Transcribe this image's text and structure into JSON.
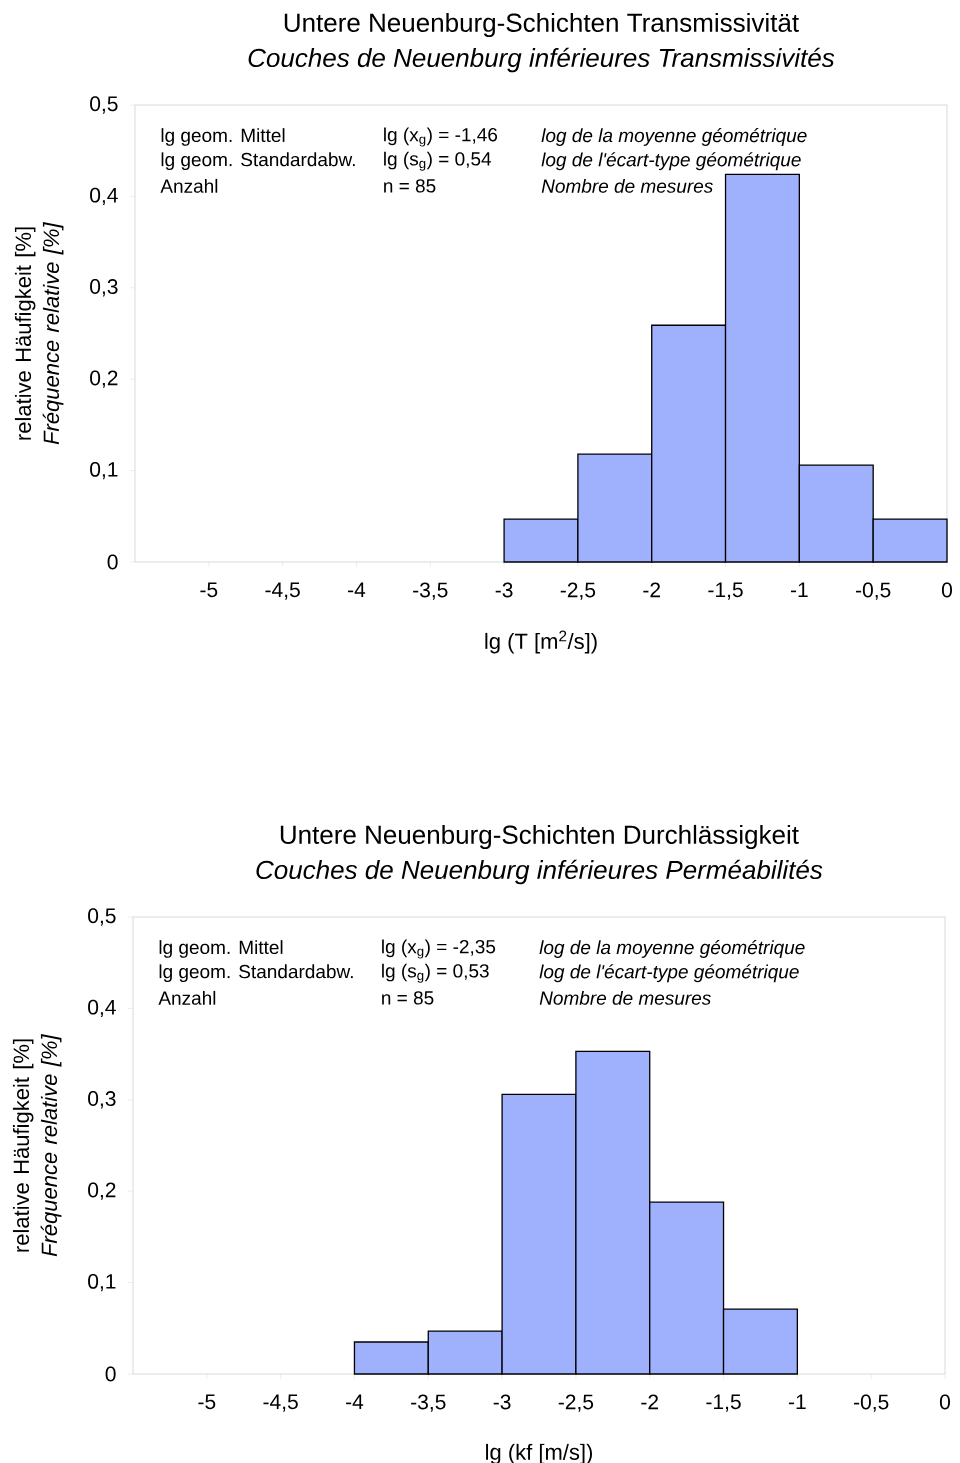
{
  "chart_data": [
    {
      "type": "histogram",
      "title": "Untere Neuenburg-Schichten Transmissivität",
      "subtitle": "Couches de Neuenburg inférieures Transmissivités",
      "xlabel": "lg (T [m$^{2}$/s])",
      "ylabel": "relative Häufigkeit [%] *Fréquence relative [%]*",
      "annotations": [
        "lg geom. Mittel",
        "lg (x$_{g}$) = -1,46",
        "log de la moyenne géométrique",
        "lg geom. Standardabw.",
        "lg (s$_{g}$) =   0,54",
        "log de l'écart-type géométrique",
        "Anzahl",
        "n         =   85",
        "Nombre de mesures"
      ],
      "bins": [
        -3,
        -2.5,
        -2,
        -1.5,
        -1,
        -0.5,
        0
      ],
      "values": [
        0.047,
        0.118,
        0.259,
        0.424,
        0.106,
        0.047
      ],
      "color": "#9fb0fc",
      "xlim": [
        -5.5,
        0
      ],
      "ylim": [
        0,
        0.5
      ],
      "xticks": [
        -5,
        {
          "value": -4.5,
          "label": "-4,5"
        },
        -4,
        {
          "value": -3.5,
          "label": "-3,5"
        },
        -3,
        {
          "value": -2.5,
          "label": "-2,5"
        },
        -2,
        {
          "value": -1.5,
          "label": "-1,5"
        },
        -1,
        {
          "value": -0.5,
          "label": "-0,5"
        },
        0
      ],
      "yticks": [
        0,
        {
          "value": 0.1,
          "label": "0,1"
        },
        {
          "value": 0.2,
          "label": "0,2"
        },
        {
          "value": 0.3,
          "label": "0,3"
        },
        {
          "value": 0.4,
          "label": "0,4"
        },
        {
          "value": 0.5,
          "label": "0,5"
        }
      ]
    },
    {
      "type": "histogram",
      "title": "Untere Neuenburg-Schichten Durchlässigkeit",
      "subtitle": "Couches de Neuenburg inférieures  Perméabilités",
      "xlabel": "lg (kf [m/s])",
      "ylabel": "relative Häufigkeit [%] *Fréquence relative [%]*",
      "annotations": [
        "lg geom. Mittel",
        "lg (x$_{g}$) = -2,35",
        "log de la moyenne géométrique",
        "lg geom. Standardabw.",
        "lg (s$_{g}$) =   0,53",
        "log de l'écart-type géométrique",
        "Anzahl",
        "n         =   85",
        "Nombre de mesures"
      ],
      "bins": [
        -4,
        -3.5,
        -3,
        -2.5,
        -2,
        -1.5,
        -1
      ],
      "values": [
        0.035,
        0.047,
        0.306,
        0.353,
        0.188,
        0.071
      ],
      "color": "#9fb0fc",
      "xlim": [
        -5.5,
        0
      ],
      "ylim": [
        0,
        0.5
      ],
      "xticks": [
        -5,
        {
          "value": -4.5,
          "label": "-4,5"
        },
        -4,
        {
          "value": -3.5,
          "label": "-3,5"
        },
        -3,
        {
          "value": -2.5,
          "label": "-2,5"
        },
        -2,
        {
          "value": -1.5,
          "label": "-1,5"
        },
        -1,
        {
          "value": -0.5,
          "label": "-0,5"
        },
        0
      ],
      "yticks": [
        0,
        {
          "value": 0.1,
          "label": "0,1"
        },
        {
          "value": 0.2,
          "label": "0,2"
        },
        {
          "value": 0.3,
          "label": "0,3"
        },
        {
          "value": 0.4,
          "label": "0,4"
        },
        {
          "value": 0.5,
          "label": "0,5"
        }
      ]
    }
  ]
}
